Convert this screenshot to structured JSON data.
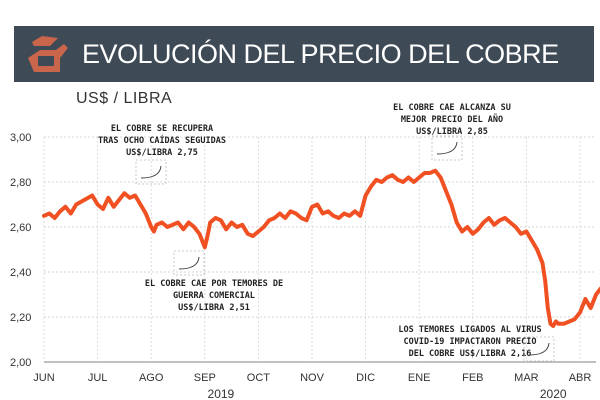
{
  "header": {
    "title": "EVOLUCIÓN DEL PRECIO DEL COBRE",
    "colors": {
      "bar": "#3f4a57",
      "logo": "#c9654b",
      "title": "#ffffff"
    },
    "logo_icon": "copper-ingot-hand-icon"
  },
  "unit_label": "US$ / LIBRA",
  "chart_data": {
    "type": "line",
    "ylabel": "US$ / LIBRA",
    "ylim": [
      2.0,
      3.0
    ],
    "y_ticks": [
      "3,00",
      "2,80",
      "2,60",
      "2,40",
      "2,20",
      "2,00"
    ],
    "y_tick_values": [
      3.0,
      2.8,
      2.6,
      2.4,
      2.2,
      2.0
    ],
    "grid": true,
    "x_categories": [
      "JUN",
      "JUL",
      "AGO",
      "SEP",
      "OCT",
      "NOV",
      "DIC",
      "ENE",
      "FEB",
      "MAR",
      "ABR"
    ],
    "x_month_index": [
      0,
      1,
      2,
      3,
      4,
      5,
      6,
      7,
      8,
      9,
      10
    ],
    "years": [
      {
        "label": "2019",
        "month_index": 3.3
      },
      {
        "label": "2020",
        "month_index": 9.5
      }
    ],
    "line_color": "#f05022",
    "series": [
      {
        "x": [
          0.0,
          0.1,
          0.2,
          0.3,
          0.4,
          0.5,
          0.6,
          0.75,
          0.9,
          1.0,
          1.1,
          1.2,
          1.3,
          1.4,
          1.5,
          1.6,
          1.7,
          1.8,
          1.9,
          2.0,
          2.05,
          2.1,
          2.2,
          2.3,
          2.4,
          2.5,
          2.6,
          2.7,
          2.8,
          2.9,
          3.0,
          3.05,
          3.1,
          3.2,
          3.3,
          3.4,
          3.5,
          3.6,
          3.7,
          3.8,
          3.9,
          4.0,
          4.1,
          4.2,
          4.3,
          4.4,
          4.5,
          4.6,
          4.7,
          4.8,
          4.9,
          5.0,
          5.1,
          5.2,
          5.3,
          5.4,
          5.5,
          5.6,
          5.7,
          5.8,
          5.9,
          6.0,
          6.1,
          6.2,
          6.3,
          6.4,
          6.5,
          6.6,
          6.7,
          6.8,
          6.9,
          7.0,
          7.1,
          7.2,
          7.3,
          7.4,
          7.5,
          7.6,
          7.7,
          7.8,
          7.9,
          8.0,
          8.1,
          8.2,
          8.3,
          8.4,
          8.5,
          8.6,
          8.7,
          8.8,
          8.9,
          9.0,
          9.1,
          9.2,
          9.3,
          9.35,
          9.4,
          9.45,
          9.5,
          9.55,
          9.6,
          9.7,
          9.8,
          9.9,
          10.0,
          10.1,
          10.2,
          10.3,
          10.4,
          10.5
        ],
        "values": [
          2.65,
          2.66,
          2.64,
          2.67,
          2.69,
          2.66,
          2.7,
          2.72,
          2.74,
          2.7,
          2.68,
          2.73,
          2.69,
          2.72,
          2.75,
          2.73,
          2.74,
          2.7,
          2.66,
          2.6,
          2.58,
          2.61,
          2.62,
          2.6,
          2.61,
          2.62,
          2.59,
          2.62,
          2.6,
          2.57,
          2.51,
          2.56,
          2.62,
          2.64,
          2.63,
          2.59,
          2.62,
          2.6,
          2.61,
          2.57,
          2.56,
          2.58,
          2.6,
          2.63,
          2.64,
          2.66,
          2.64,
          2.67,
          2.66,
          2.64,
          2.63,
          2.69,
          2.7,
          2.66,
          2.67,
          2.65,
          2.64,
          2.66,
          2.65,
          2.67,
          2.65,
          2.74,
          2.78,
          2.81,
          2.8,
          2.82,
          2.83,
          2.81,
          2.8,
          2.82,
          2.8,
          2.82,
          2.84,
          2.84,
          2.85,
          2.82,
          2.76,
          2.7,
          2.62,
          2.58,
          2.6,
          2.57,
          2.59,
          2.62,
          2.64,
          2.61,
          2.63,
          2.64,
          2.62,
          2.6,
          2.57,
          2.58,
          2.54,
          2.5,
          2.44,
          2.36,
          2.24,
          2.17,
          2.16,
          2.18,
          2.17,
          2.17,
          2.18,
          2.19,
          2.22,
          2.28,
          2.24,
          2.3,
          2.33,
          2.35
        ]
      }
    ],
    "annotations": [
      {
        "lines": [
          "EL COBRE SE RECUPERA",
          "TRAS OCHO CAÍDAS SEGUIDAS",
          "US$/LIBRA 2,75"
        ],
        "x": 1.5,
        "value": 2.75
      },
      {
        "lines": [
          "EL COBRE CAE POR TEMORES DE",
          "GUERRA COMERCIAL",
          "US$/LIBRA 2,51"
        ],
        "x": 3.0,
        "value": 2.51
      },
      {
        "lines": [
          "EL COBRE CAE ALCANZA SU",
          "MEJOR PRECIO DEL AÑO",
          "US$/LIBRA 2,85"
        ],
        "x": 7.3,
        "value": 2.85
      },
      {
        "lines": [
          "LOS TEMORES LIGADOS AL VIRUS",
          "COVID-19 IMPACTARON PRECIO",
          "DEL COBRE US$/LIBRA 2,16"
        ],
        "x": 9.5,
        "value": 2.16
      }
    ]
  }
}
